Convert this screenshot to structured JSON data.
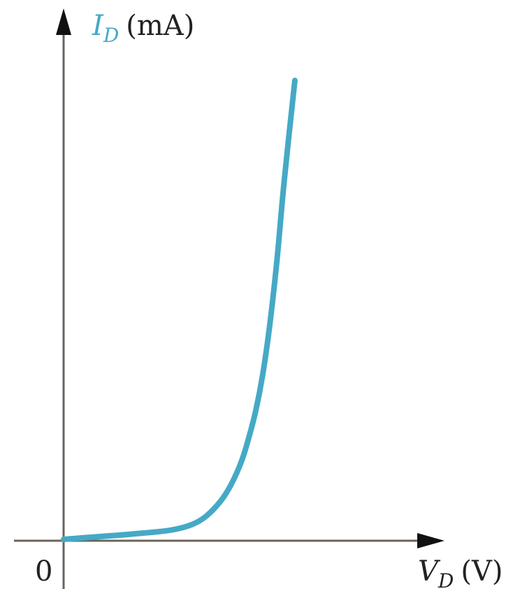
{
  "chart_data": {
    "type": "line",
    "title": "",
    "xlabel": {
      "symbol": "V",
      "subscript": "D",
      "unit": "(V)"
    },
    "ylabel": {
      "symbol": "I",
      "subscript": "D",
      "unit": "(mA)"
    },
    "origin_label": "0",
    "xlim": [
      0,
      1
    ],
    "ylim": [
      0,
      1
    ],
    "grid": false,
    "legend": "none",
    "series": [
      {
        "color": "#45a9c6",
        "x": [
          0,
          0.1,
          0.2,
          0.3,
          0.36,
          0.4,
          0.44,
          0.47,
          0.5,
          0.52,
          0.54,
          0.56,
          0.58,
          0.6,
          0.62,
          0.65
        ],
        "y": [
          0,
          0.006,
          0.012,
          0.02,
          0.032,
          0.05,
          0.082,
          0.118,
          0.17,
          0.22,
          0.28,
          0.36,
          0.47,
          0.61,
          0.78,
          1.0
        ]
      }
    ]
  }
}
